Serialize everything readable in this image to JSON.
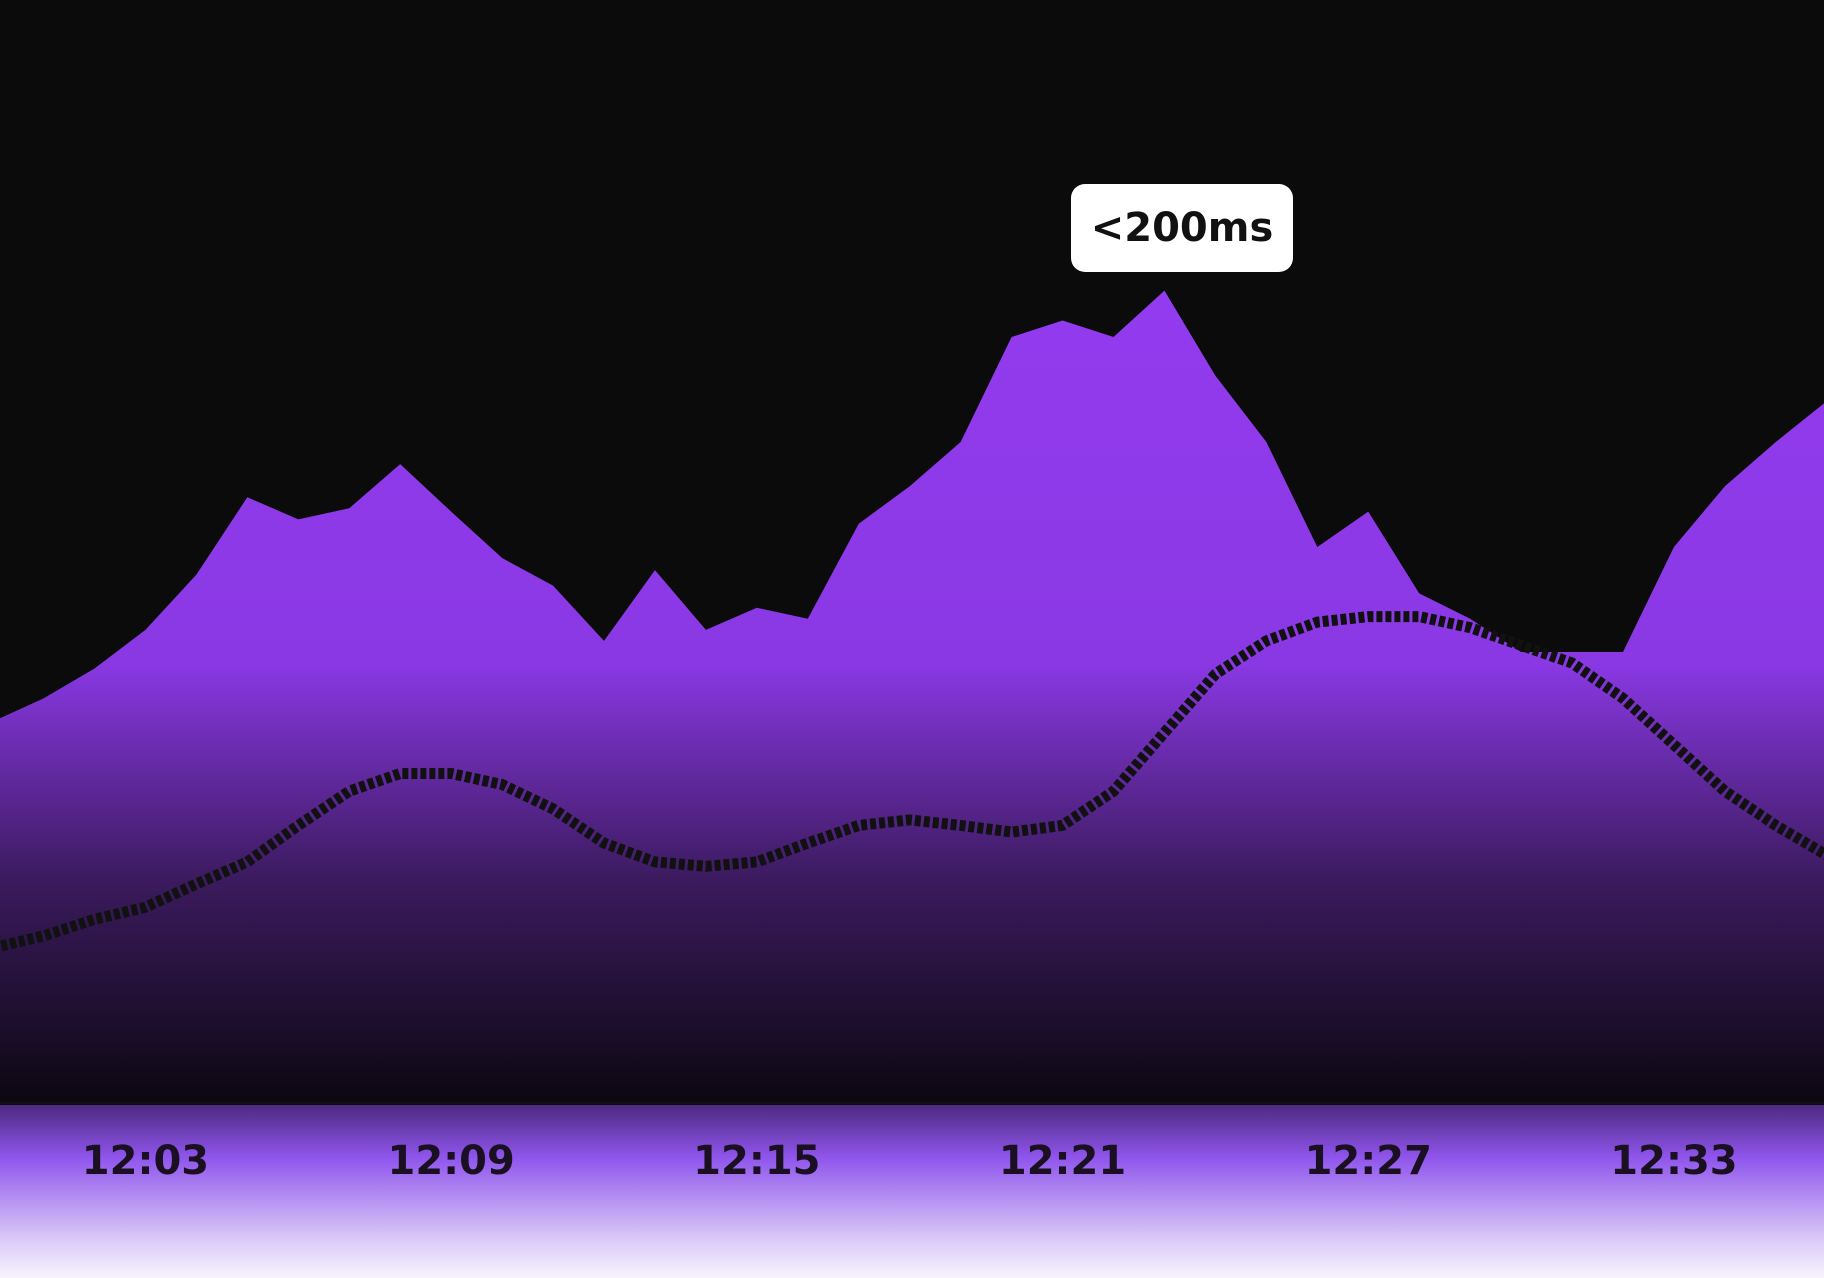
{
  "chart_data": {
    "type": "area",
    "categories": [
      null,
      null,
      null,
      "12:03",
      null,
      null,
      null,
      null,
      null,
      "12:09",
      null,
      null,
      null,
      null,
      null,
      "12:15",
      null,
      null,
      null,
      null,
      null,
      "12:21",
      null,
      null,
      null,
      null,
      null,
      "12:27",
      null,
      null,
      null,
      null,
      null,
      "12:33",
      null,
      null,
      null
    ],
    "series": [
      {
        "type": "area",
        "color": "#9a3cf7",
        "values": [
          34.7,
          36.8,
          39.5,
          43,
          48,
          55,
          53,
          54,
          58,
          53.7,
          49.5,
          47,
          42,
          48.4,
          43,
          45,
          44,
          52.6,
          56,
          60,
          69.5,
          71,
          69.5,
          73.7,
          66,
          60,
          50.5,
          53.7,
          46.3,
          44,
          41,
          41,
          41,
          50.5,
          56,
          60,
          63.7
        ]
      },
      {
        "type": "line",
        "color": "#111111",
        "values": [
          14.2,
          15.3,
          16.8,
          17.9,
          20,
          22,
          25.3,
          28.4,
          30,
          30,
          29,
          26.8,
          23.7,
          22,
          21.6,
          22,
          23.7,
          25.3,
          25.8,
          25.3,
          24.7,
          25.3,
          28.4,
          33.7,
          39,
          42,
          43.7,
          44.2,
          44.2,
          43.2,
          41.6,
          40,
          36.8,
          32.6,
          28.4,
          25.3,
          22.6
        ]
      }
    ],
    "ylim": [
      0,
      100
    ],
    "annotation": "<200ms"
  }
}
